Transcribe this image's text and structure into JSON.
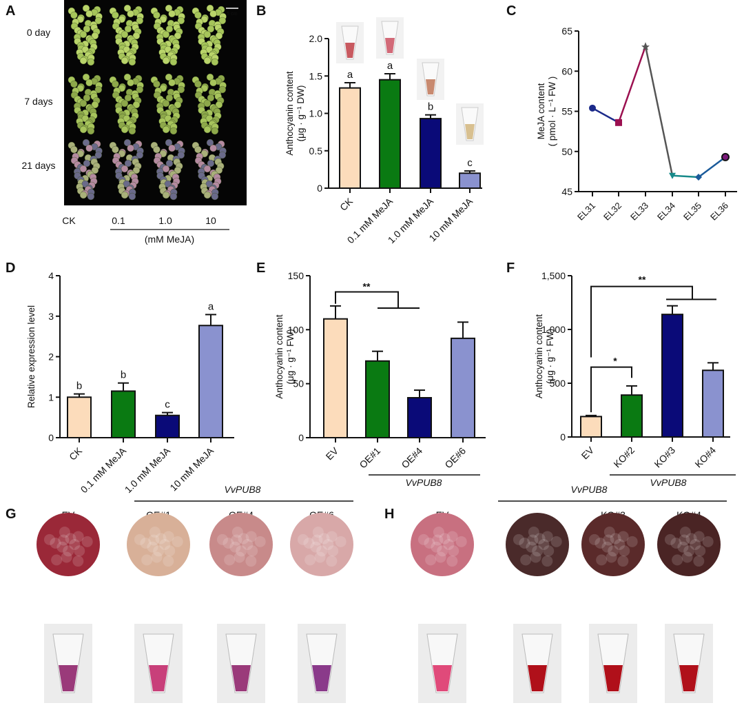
{
  "panels": {
    "A": "A",
    "B": "B",
    "C": "C",
    "D": "D",
    "E": "E",
    "F": "F",
    "G": "G",
    "H": "H"
  },
  "panel_a": {
    "scale_bar": "5 cm",
    "rows": [
      "0 day",
      "7 days",
      "21 days"
    ],
    "columns": [
      "CK",
      "0.1",
      "1.0",
      "10"
    ],
    "unit": "(mM MeJA)"
  },
  "panel_g": {
    "group_label": "VvPUB8",
    "samples": [
      "EV",
      "OE#1",
      "OE#4",
      "OE#6"
    ]
  },
  "panel_h": {
    "group_label": "VvPUB8",
    "samples": [
      "EV",
      "",
      "KO#3",
      "KO#4"
    ]
  },
  "colors": {
    "ck": "#fcdcbb",
    "c1": "#0a7a12",
    "c2": "#0a0a78",
    "c3": "#8a92cf"
  },
  "chart_data": [
    {
      "id": "B",
      "type": "bar",
      "categories": [
        "CK",
        "0.1 mM MeJA",
        "1.0 mM MeJA",
        "10 mM MeJA"
      ],
      "values": [
        1.34,
        1.45,
        0.93,
        0.2
      ],
      "errors": [
        0.07,
        0.08,
        0.05,
        0.03
      ],
      "letters": [
        "a",
        "a",
        "b",
        "c"
      ],
      "ylabel": [
        "Anthocyanin content",
        "(μg · g⁻¹ DW)"
      ],
      "ylim": [
        0,
        2.0
      ],
      "yticks": [
        "0",
        "0.5",
        "1.0",
        "1.5",
        "2.0"
      ],
      "ytick_values": [
        0,
        0.5,
        1.0,
        1.5,
        2.0
      ]
    },
    {
      "id": "C",
      "type": "line",
      "categories": [
        "EL31",
        "EL32",
        "EL33",
        "EL34",
        "EL35",
        "EL36"
      ],
      "values": [
        55.4,
        53.6,
        63.1,
        47.0,
        46.8,
        49.3
      ],
      "ylabel": [
        "MeJA content",
        "( pmol · L⁻¹ FW )"
      ],
      "ylim": [
        45,
        65
      ],
      "yticks": [
        "45",
        "50",
        "55",
        "60",
        "65"
      ],
      "ytick_values": [
        45,
        50,
        55,
        60,
        65
      ],
      "segment_colors": [
        "#1b2a8a",
        "#9b1050",
        "#555555",
        "#178a8a",
        "#1a5a9a"
      ],
      "markers": [
        "circle",
        "square",
        "star",
        "triangle-down",
        "diamond",
        "circle"
      ],
      "marker_colors": [
        "#1b2a8a",
        "#9b1050",
        "#555555",
        "#178a8a",
        "#1a5a9a",
        "#7a1a7a"
      ]
    },
    {
      "id": "D",
      "type": "bar",
      "categories": [
        "CK",
        "0.1 mM MeJA",
        "1.0 mM MeJA",
        "10 mM MeJA"
      ],
      "values": [
        1.0,
        1.15,
        0.55,
        2.77
      ],
      "errors": [
        0.08,
        0.2,
        0.07,
        0.27
      ],
      "letters": [
        "b",
        "b",
        "c",
        "a"
      ],
      "ylabel": [
        "Relative expression level"
      ],
      "ylim": [
        0,
        4
      ],
      "yticks": [
        "0",
        "1",
        "2",
        "3",
        "4"
      ],
      "ytick_values": [
        0,
        1,
        2,
        3,
        4
      ]
    },
    {
      "id": "E",
      "type": "bar",
      "categories": [
        "EV",
        "OE#1",
        "OE#4",
        "OE#6"
      ],
      "values": [
        110,
        71,
        37,
        92
      ],
      "errors": [
        12,
        9,
        7,
        15
      ],
      "significance": [
        "**"
      ],
      "group_label": "VvPUB8",
      "ylabel": [
        "Anthocyanin content",
        "(μg · g⁻¹ FW)"
      ],
      "ylim": [
        0,
        150
      ],
      "yticks": [
        "0",
        "50",
        "100",
        "150"
      ],
      "ytick_values": [
        0,
        50,
        100,
        150
      ]
    },
    {
      "id": "F",
      "type": "bar",
      "categories": [
        "EV",
        "KO#2",
        "KO#3",
        "KO#4"
      ],
      "values": [
        190,
        390,
        1140,
        620
      ],
      "errors": [
        10,
        85,
        80,
        70
      ],
      "significance": [
        "**",
        "*"
      ],
      "group_label": "VvPUB8",
      "ylabel": [
        "Anthocyanin content",
        "(μg · g⁻¹ FW)"
      ],
      "ylim": [
        0,
        1500
      ],
      "yticks": [
        "0",
        "500",
        "1,000",
        "1,500"
      ],
      "ytick_values": [
        0,
        500,
        1000,
        1500
      ]
    }
  ]
}
